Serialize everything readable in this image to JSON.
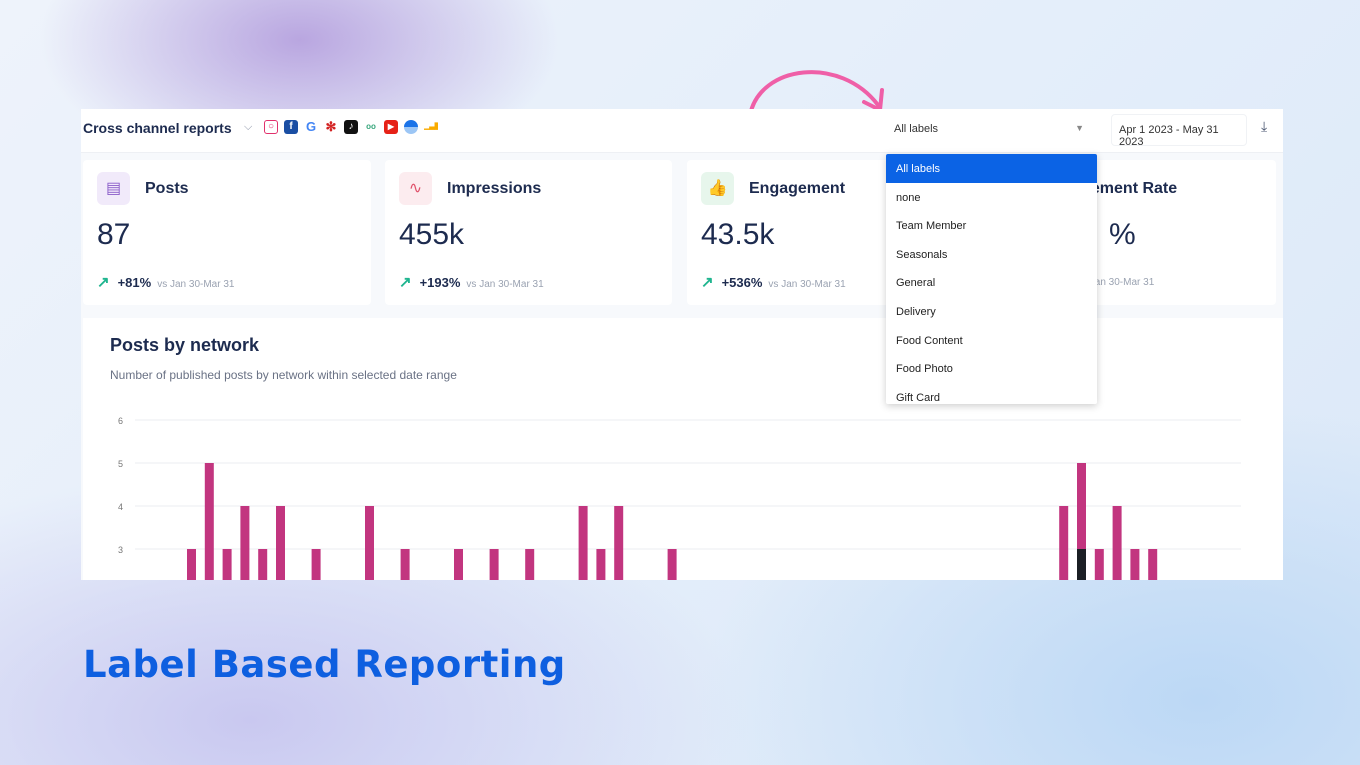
{
  "header": {
    "title": "Cross channel reports",
    "networks": [
      "instagram",
      "facebook",
      "google",
      "yelp",
      "tiktok",
      "tripadvisor",
      "youtube",
      "google-my-business",
      "analytics"
    ],
    "label_select": "All labels",
    "date_range": "Apr 1 2023 - May 31 2023"
  },
  "cards": [
    {
      "title": "Posts",
      "value": "87",
      "delta": "+81%",
      "compare": "vs Jan 30-Mar 31"
    },
    {
      "title": "Impressions",
      "value": "455k",
      "delta": "+193%",
      "compare": "vs Jan 30-Mar 31"
    },
    {
      "title": "Engagement",
      "value": "43.5k",
      "delta": "+536%",
      "compare": "vs Jan 30-Mar 31"
    },
    {
      "title": "Engagement Rate",
      "value": "%",
      "delta": "",
      "compare": "vs Jan 30-Mar 31"
    }
  ],
  "dropdown": {
    "options": [
      "All labels",
      "none",
      "Team Member",
      "Seasonals",
      "General",
      "Delivery",
      "Food Content",
      "Food Photo",
      "Gift Card"
    ],
    "selected": "All labels"
  },
  "chart_data": {
    "type": "bar",
    "title": "Posts by network",
    "subtitle": "Number of published posts by network within selected date range",
    "yticks": [
      3,
      4,
      5,
      6
    ],
    "ylim": [
      0,
      6
    ],
    "grid": true,
    "colors": {
      "primary": "#c2357f",
      "secondary": "#1b1f24"
    },
    "day": [
      0,
      1,
      2,
      3,
      4,
      5,
      7,
      10,
      12,
      15,
      17,
      19,
      22,
      23,
      24,
      27,
      49,
      50,
      51,
      52,
      53,
      54
    ],
    "values": [
      3,
      5,
      3,
      4,
      3,
      4,
      3,
      4,
      3,
      3,
      3,
      3,
      4,
      3,
      4,
      3,
      4,
      5,
      3,
      4,
      3,
      3
    ],
    "secondary_values": [
      0,
      0,
      0,
      0,
      0,
      0,
      0,
      0,
      0,
      0,
      0,
      0,
      0,
      0,
      0,
      0,
      0,
      3,
      0,
      0,
      0,
      0
    ]
  },
  "footer": {
    "headline": "Label Based Reporting"
  }
}
